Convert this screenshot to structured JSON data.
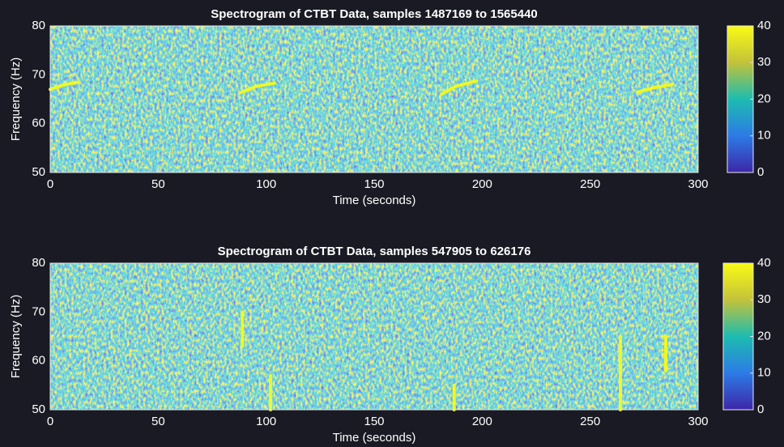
{
  "chart_data": [
    {
      "type": "heatmap",
      "title": "Spectrogram of CTBT Data,  samples 1487169 to 1565440",
      "xlabel": "Time (seconds)",
      "ylabel": "Frequency (Hz)",
      "xlim": [
        0,
        300
      ],
      "xticks": [
        0,
        50,
        100,
        150,
        200,
        250,
        300
      ],
      "ylim": [
        50,
        80
      ],
      "yticks": [
        50,
        60,
        70,
        80
      ],
      "clim": [
        0,
        40
      ],
      "cticks": [
        0,
        10,
        20,
        30,
        40
      ],
      "colormap": [
        "#3e26a8",
        "#2c7be6",
        "#1dbcb0",
        "#c3c23a",
        "#f9fb15"
      ],
      "tracks": [
        {
          "x": [
            0,
            6,
            13
          ],
          "y": [
            67,
            67.9,
            68.5
          ]
        },
        {
          "x": [
            88,
            95,
            104
          ],
          "y": [
            66.3,
            67.6,
            68.3
          ]
        },
        {
          "x": [
            181,
            188,
            197
          ],
          "y": [
            66,
            67.7,
            68.7
          ]
        },
        {
          "x": [
            272,
            280,
            288
          ],
          "y": [
            66.5,
            67.4,
            68
          ]
        }
      ]
    },
    {
      "type": "heatmap",
      "title": "Spectrogram of CTBT Data, samples 547905 to 626176",
      "xlabel": "Time (seconds)",
      "ylabel": "Frequency (Hz)",
      "xlim": [
        0,
        300
      ],
      "xticks": [
        0,
        50,
        100,
        150,
        200,
        250,
        300
      ],
      "ylim": [
        50,
        80
      ],
      "yticks": [
        50,
        60,
        70,
        80
      ],
      "clim": [
        0,
        40
      ],
      "cticks": [
        0,
        10,
        20,
        30,
        40
      ],
      "colormap": [
        "#3e26a8",
        "#2c7be6",
        "#1dbcb0",
        "#c3c23a",
        "#f9fb15"
      ],
      "tracks": [
        {
          "x": [
            89,
            89
          ],
          "y": [
            63,
            70
          ]
        },
        {
          "x": [
            102,
            102
          ],
          "y": [
            50,
            57
          ]
        },
        {
          "x": [
            187,
            187
          ],
          "y": [
            50,
            55
          ]
        },
        {
          "x": [
            264,
            264
          ],
          "y": [
            50,
            65
          ]
        },
        {
          "x": [
            285,
            285
          ],
          "y": [
            58,
            65
          ]
        }
      ]
    }
  ]
}
